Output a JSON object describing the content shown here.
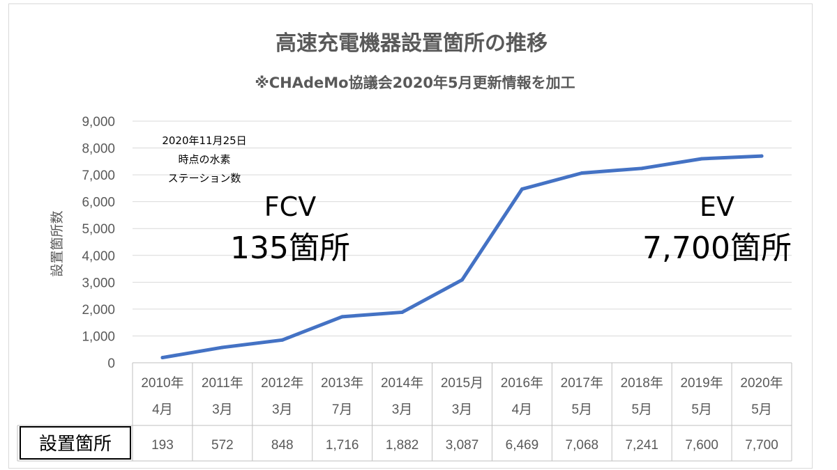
{
  "chart_data": {
    "type": "line",
    "title": "高速充電機器設置箇所の推移",
    "subtitle": "※CHAdeMo協議会2020年5月更新情報を加工",
    "ylabel": "設置箇所数",
    "ylim": [
      0,
      9000
    ],
    "yticks": [
      "0",
      "1,000",
      "2,000",
      "3,000",
      "4,000",
      "5,000",
      "6,000",
      "7,000",
      "8,000",
      "9,000"
    ],
    "grid": true,
    "categories": [
      [
        "2010年",
        "4月"
      ],
      [
        "2011年",
        "3月"
      ],
      [
        "2012年",
        "3月"
      ],
      [
        "2013年",
        "7月"
      ],
      [
        "2014年",
        "3月"
      ],
      [
        "2015月",
        "3月"
      ],
      [
        "2016年",
        "4月"
      ],
      [
        "2017年",
        "5月"
      ],
      [
        "2018年",
        "5月"
      ],
      [
        "2019年",
        "5月"
      ],
      [
        "2020年",
        "5月"
      ]
    ],
    "series": [
      {
        "values": [
          193,
          572,
          848,
          1716,
          1882,
          3087,
          6469,
          7068,
          7241,
          7600,
          7700
        ],
        "color": "#4472c4"
      }
    ],
    "table": {
      "row_label": "設置箇所",
      "values": [
        "193",
        "572",
        "848",
        "1,716",
        "1,882",
        "3,087",
        "6,469",
        "7,068",
        "7,241",
        "7,600",
        "7,700"
      ]
    },
    "annotations": {
      "note_lines": [
        "2020年11月25日",
        "時点の水素",
        "ステーション数"
      ],
      "fcv_label": "FCV",
      "fcv_value": "135箇所",
      "ev_label": "EV",
      "ev_value": "7,700箇所"
    }
  }
}
